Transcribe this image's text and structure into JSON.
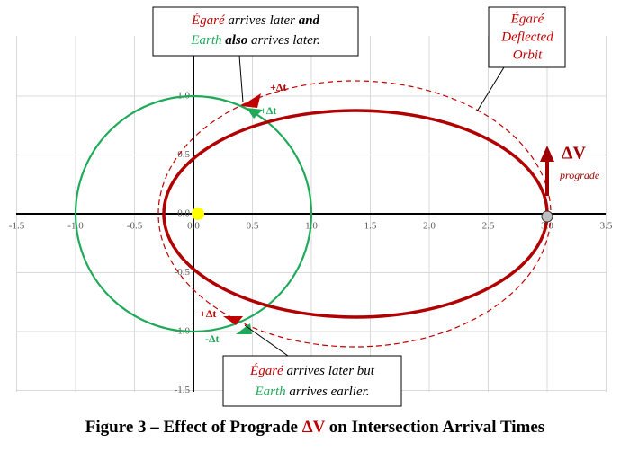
{
  "axes": {
    "xticks": [
      {
        "value": -1.5,
        "label": "-1.5"
      },
      {
        "value": -1,
        "label": "-1.0"
      },
      {
        "value": -0.5,
        "label": "-0.5"
      },
      {
        "value": 0,
        "label": "0.0"
      },
      {
        "value": 0.5,
        "label": "0.5"
      },
      {
        "value": 1,
        "label": "1.0"
      },
      {
        "value": 1.5,
        "label": "1.5"
      },
      {
        "value": 2,
        "label": "2.0"
      },
      {
        "value": 2.5,
        "label": "2.5"
      },
      {
        "value": 3,
        "label": "3.0"
      },
      {
        "value": 3.5,
        "label": "3.5"
      }
    ],
    "yticks": [
      {
        "value": -1.5,
        "label": "-1.5"
      },
      {
        "value": -1,
        "label": "-1.0"
      },
      {
        "value": -0.5,
        "label": "-0.5"
      },
      {
        "value": 0,
        "label": "0.0"
      },
      {
        "value": 0.5,
        "label": "0.5"
      },
      {
        "value": 1,
        "label": "1.0"
      }
    ]
  },
  "callouts": {
    "top": {
      "line1": [
        "Égaré",
        " arrives later ",
        "and"
      ],
      "line2": [
        "Earth",
        " also",
        " arrives later."
      ]
    },
    "orbit": [
      "Égaré",
      "Deflected",
      "Orbit"
    ],
    "bottom": {
      "line1": [
        "Égaré",
        " arrives later but"
      ],
      "line2": [
        "Earth",
        " arrives earlier."
      ]
    }
  },
  "markers": {
    "top_red": "+Δt",
    "top_green": "+Δt",
    "bottom_red": "+Δt",
    "bottom_green": "-Δt"
  },
  "delta_v": {
    "symbol": "ΔV",
    "label": "prograde"
  },
  "caption": [
    "Figure 3 – Effect of Prograde ",
    "ΔV",
    " on Intersection Arrival Times"
  ]
}
